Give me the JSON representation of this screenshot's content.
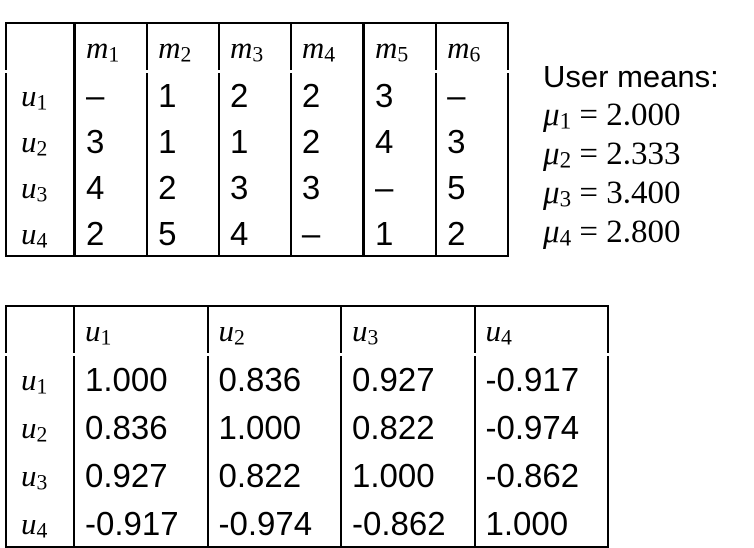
{
  "ratings": {
    "col_headers": [
      {
        "sym": "m",
        "idx": "1"
      },
      {
        "sym": "m",
        "idx": "2"
      },
      {
        "sym": "m",
        "idx": "3"
      },
      {
        "sym": "m",
        "idx": "4"
      },
      {
        "sym": "m",
        "idx": "5"
      },
      {
        "sym": "m",
        "idx": "6"
      }
    ],
    "rows": [
      {
        "sym": "u",
        "idx": "1",
        "cells": [
          "–",
          "1",
          "2",
          "2",
          "3",
          "–"
        ]
      },
      {
        "sym": "u",
        "idx": "2",
        "cells": [
          "3",
          "1",
          "1",
          "2",
          "4",
          "3"
        ]
      },
      {
        "sym": "u",
        "idx": "3",
        "cells": [
          "4",
          "2",
          "3",
          "3",
          "–",
          "5"
        ]
      },
      {
        "sym": "u",
        "idx": "4",
        "cells": [
          "2",
          "5",
          "4",
          "–",
          "1",
          "2"
        ]
      }
    ]
  },
  "user_means": {
    "title": "User means:",
    "items": [
      {
        "sym": "μ",
        "idx": "1",
        "value": "= 2.000"
      },
      {
        "sym": "μ",
        "idx": "2",
        "value": "= 2.333"
      },
      {
        "sym": "μ",
        "idx": "3",
        "value": "= 3.400"
      },
      {
        "sym": "μ",
        "idx": "4",
        "value": "= 2.800"
      }
    ]
  },
  "similarity": {
    "col_headers": [
      {
        "sym": "u",
        "idx": "1"
      },
      {
        "sym": "u",
        "idx": "2"
      },
      {
        "sym": "u",
        "idx": "3"
      },
      {
        "sym": "u",
        "idx": "4"
      }
    ],
    "rows": [
      {
        "sym": "u",
        "idx": "1",
        "cells": [
          "1.000",
          "0.836",
          "0.927",
          "-0.917"
        ]
      },
      {
        "sym": "u",
        "idx": "2",
        "cells": [
          "0.836",
          "1.000",
          "0.822",
          "-0.974"
        ]
      },
      {
        "sym": "u",
        "idx": "3",
        "cells": [
          "0.927",
          "0.822",
          "1.000",
          "-0.862"
        ]
      },
      {
        "sym": "u",
        "idx": "4",
        "cells": [
          "-0.917",
          "-0.974",
          "-0.862",
          "1.000"
        ]
      }
    ]
  }
}
